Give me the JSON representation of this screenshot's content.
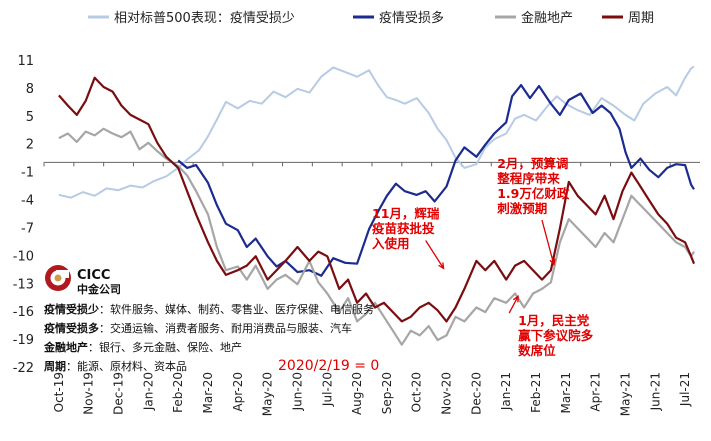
{
  "chart_data": {
    "type": "line",
    "title": "",
    "xlabel": "",
    "ylabel": "",
    "ylim": [
      -22,
      11
    ],
    "yticks": [
      11,
      8,
      5,
      2,
      -1,
      -4,
      -7,
      -10,
      -13,
      -16,
      -19,
      -22
    ],
    "xticks": [
      "Oct-19",
      "Nov-19",
      "Dec-19",
      "Jan-20",
      "Feb-20",
      "Mar-20",
      "Apr-20",
      "May-20",
      "Jun-20",
      "Jul-20",
      "Aug-20",
      "Sep-20",
      "Oct-20",
      "Nov-20",
      "Dec-20",
      "Jan-21",
      "Feb-21",
      "Mar-21",
      "Apr-21",
      "May-21",
      "Jun-21",
      "Jul-21"
    ],
    "grid": false,
    "legend_position": "top",
    "series": [
      {
        "name": "相对标普500表现：疫情受损少",
        "color": "#b7cbe4",
        "points": [
          [
            0,
            -3.5
          ],
          [
            0.4,
            -3.8
          ],
          [
            0.8,
            -3.2
          ],
          [
            1.2,
            -3.6
          ],
          [
            1.6,
            -2.8
          ],
          [
            2,
            -3
          ],
          [
            2.4,
            -2.5
          ],
          [
            2.8,
            -2.7
          ],
          [
            3.2,
            -2
          ],
          [
            3.6,
            -1.5
          ],
          [
            4,
            -0.6
          ],
          [
            4.3,
            0.3
          ],
          [
            4.7,
            1.3
          ],
          [
            5,
            2.8
          ],
          [
            5.3,
            4.6
          ],
          [
            5.6,
            6.5
          ],
          [
            6,
            5.8
          ],
          [
            6.4,
            6.6
          ],
          [
            6.8,
            6.3
          ],
          [
            7.2,
            7.6
          ],
          [
            7.6,
            7
          ],
          [
            8,
            7.9
          ],
          [
            8.4,
            7.5
          ],
          [
            8.8,
            9.2
          ],
          [
            9.2,
            10.2
          ],
          [
            9.6,
            9.7
          ],
          [
            10,
            9.2
          ],
          [
            10.4,
            9.9
          ],
          [
            10.7,
            8.3
          ],
          [
            11,
            7
          ],
          [
            11.3,
            6.7
          ],
          [
            11.6,
            6.3
          ],
          [
            12,
            6.9
          ],
          [
            12.4,
            5.3
          ],
          [
            12.7,
            3.6
          ],
          [
            13,
            2.4
          ],
          [
            13.3,
            0.5
          ],
          [
            13.6,
            -0.6
          ],
          [
            14,
            -0.2
          ],
          [
            14.3,
            1.6
          ],
          [
            14.6,
            2.5
          ],
          [
            15,
            3.1
          ],
          [
            15.3,
            4.7
          ],
          [
            15.6,
            5.1
          ],
          [
            16,
            4.5
          ],
          [
            16.4,
            6.1
          ],
          [
            16.7,
            7.1
          ],
          [
            17,
            6.3
          ],
          [
            17.4,
            5.6
          ],
          [
            17.8,
            5.1
          ],
          [
            18.2,
            6.9
          ],
          [
            18.6,
            6.1
          ],
          [
            19,
            5.1
          ],
          [
            19.3,
            4.5
          ],
          [
            19.6,
            6.3
          ],
          [
            20,
            7.4
          ],
          [
            20.4,
            8.1
          ],
          [
            20.7,
            7.2
          ],
          [
            21,
            9.1
          ],
          [
            21.2,
            10.1
          ],
          [
            21.3,
            10.3
          ]
        ]
      },
      {
        "name": "疫情受损多",
        "color": "#1c2b8f",
        "points": [
          [
            4,
            0.2
          ],
          [
            4.3,
            -0.6
          ],
          [
            4.6,
            -0.3
          ],
          [
            5,
            -2.2
          ],
          [
            5.3,
            -4.6
          ],
          [
            5.6,
            -6.6
          ],
          [
            6,
            -7.3
          ],
          [
            6.3,
            -9.1
          ],
          [
            6.6,
            -8.2
          ],
          [
            7,
            -10.1
          ],
          [
            7.3,
            -11.2
          ],
          [
            7.6,
            -10.6
          ],
          [
            8,
            -11.8
          ],
          [
            8.4,
            -11.6
          ],
          [
            8.8,
            -12.2
          ],
          [
            9.2,
            -10.3
          ],
          [
            9.6,
            -10.8
          ],
          [
            10,
            -10.9
          ],
          [
            10.4,
            -7.2
          ],
          [
            10.7,
            -5.3
          ],
          [
            11,
            -3.6
          ],
          [
            11.3,
            -2.3
          ],
          [
            11.6,
            -3.1
          ],
          [
            12,
            -3.5
          ],
          [
            12.3,
            -3.1
          ],
          [
            12.6,
            -4.2
          ],
          [
            13,
            -2.6
          ],
          [
            13.3,
            0.2
          ],
          [
            13.6,
            1.6
          ],
          [
            14,
            0.6
          ],
          [
            14.3,
            1.9
          ],
          [
            14.6,
            3.1
          ],
          [
            15,
            4.3
          ],
          [
            15.2,
            7.1
          ],
          [
            15.5,
            8.3
          ],
          [
            15.8,
            6.9
          ],
          [
            16.1,
            8.2
          ],
          [
            16.5,
            6.3
          ],
          [
            16.8,
            5.1
          ],
          [
            17.1,
            6.7
          ],
          [
            17.5,
            7.4
          ],
          [
            17.9,
            5.3
          ],
          [
            18.2,
            6.1
          ],
          [
            18.5,
            5.3
          ],
          [
            18.8,
            3.6
          ],
          [
            19,
            1.1
          ],
          [
            19.2,
            -0.6
          ],
          [
            19.5,
            0.4
          ],
          [
            19.8,
            -0.8
          ],
          [
            20.1,
            -1.6
          ],
          [
            20.4,
            -0.6
          ],
          [
            20.7,
            -0.2
          ],
          [
            21,
            -0.3
          ],
          [
            21.2,
            -2.4
          ],
          [
            21.3,
            -2.9
          ]
        ]
      },
      {
        "name": "金融地产",
        "color": "#a6a6a6",
        "points": [
          [
            0,
            2.6
          ],
          [
            0.3,
            3.1
          ],
          [
            0.6,
            2.2
          ],
          [
            0.9,
            3.3
          ],
          [
            1.2,
            2.9
          ],
          [
            1.5,
            3.6
          ],
          [
            1.8,
            3.1
          ],
          [
            2.1,
            2.7
          ],
          [
            2.4,
            3.3
          ],
          [
            2.7,
            1.4
          ],
          [
            3,
            2.1
          ],
          [
            3.3,
            1.2
          ],
          [
            3.6,
            0.4
          ],
          [
            4,
            -0.4
          ],
          [
            4.3,
            -1.4
          ],
          [
            4.6,
            -3.1
          ],
          [
            5,
            -5.6
          ],
          [
            5.3,
            -9.1
          ],
          [
            5.6,
            -11.6
          ],
          [
            6,
            -11.2
          ],
          [
            6.3,
            -12.6
          ],
          [
            6.6,
            -11.1
          ],
          [
            7,
            -13.6
          ],
          [
            7.3,
            -12.6
          ],
          [
            7.6,
            -12.1
          ],
          [
            8,
            -13.1
          ],
          [
            8.4,
            -10.6
          ],
          [
            8.7,
            -12.9
          ],
          [
            9,
            -14.1
          ],
          [
            9.4,
            -16.1
          ],
          [
            9.7,
            -14.6
          ],
          [
            10,
            -17.1
          ],
          [
            10.3,
            -16.3
          ],
          [
            10.6,
            -15.1
          ],
          [
            10.9,
            -16.6
          ],
          [
            11.2,
            -18.1
          ],
          [
            11.5,
            -19.6
          ],
          [
            11.8,
            -18.1
          ],
          [
            12.1,
            -18.6
          ],
          [
            12.4,
            -17.6
          ],
          [
            12.7,
            -19.1
          ],
          [
            13,
            -18.6
          ],
          [
            13.3,
            -16.6
          ],
          [
            13.6,
            -17.1
          ],
          [
            14,
            -15.6
          ],
          [
            14.3,
            -16.1
          ],
          [
            14.6,
            -14.6
          ],
          [
            15,
            -15.1
          ],
          [
            15.3,
            -14.1
          ],
          [
            15.6,
            -15.6
          ],
          [
            15.9,
            -14.1
          ],
          [
            16.2,
            -13.6
          ],
          [
            16.5,
            -12.9
          ],
          [
            16.8,
            -8.6
          ],
          [
            17.1,
            -6.1
          ],
          [
            17.4,
            -7.1
          ],
          [
            17.7,
            -8.1
          ],
          [
            18,
            -9.1
          ],
          [
            18.3,
            -7.6
          ],
          [
            18.6,
            -8.6
          ],
          [
            18.9,
            -6.1
          ],
          [
            19.2,
            -3.6
          ],
          [
            19.5,
            -4.6
          ],
          [
            19.8,
            -5.6
          ],
          [
            20.1,
            -6.6
          ],
          [
            20.4,
            -7.6
          ],
          [
            20.7,
            -8.6
          ],
          [
            21,
            -9.1
          ],
          [
            21.2,
            -10.1
          ],
          [
            21.3,
            -9.6
          ]
        ]
      },
      {
        "name": "周期",
        "color": "#7a0d10",
        "points": [
          [
            0,
            7.2
          ],
          [
            0.3,
            6.1
          ],
          [
            0.6,
            5.1
          ],
          [
            0.9,
            6.6
          ],
          [
            1.2,
            9.1
          ],
          [
            1.5,
            8.1
          ],
          [
            1.8,
            7.6
          ],
          [
            2.1,
            6.1
          ],
          [
            2.4,
            5.1
          ],
          [
            2.7,
            4.6
          ],
          [
            3,
            4.1
          ],
          [
            3.3,
            2.1
          ],
          [
            3.6,
            0.6
          ],
          [
            4,
            -0.6
          ],
          [
            4.3,
            -3.1
          ],
          [
            4.6,
            -5.6
          ],
          [
            5,
            -8.6
          ],
          [
            5.3,
            -10.6
          ],
          [
            5.6,
            -12.1
          ],
          [
            6,
            -11.6
          ],
          [
            6.3,
            -11.1
          ],
          [
            6.6,
            -10.1
          ],
          [
            7,
            -12.6
          ],
          [
            7.3,
            -11.6
          ],
          [
            7.6,
            -10.6
          ],
          [
            8,
            -9.1
          ],
          [
            8.4,
            -10.6
          ],
          [
            8.7,
            -9.6
          ],
          [
            9,
            -10.1
          ],
          [
            9.4,
            -13.6
          ],
          [
            9.7,
            -12.6
          ],
          [
            10,
            -15.1
          ],
          [
            10.3,
            -14.1
          ],
          [
            10.6,
            -15.6
          ],
          [
            10.9,
            -15.1
          ],
          [
            11.2,
            -16.1
          ],
          [
            11.5,
            -17.1
          ],
          [
            11.8,
            -16.6
          ],
          [
            12.1,
            -15.6
          ],
          [
            12.4,
            -15.1
          ],
          [
            12.7,
            -15.9
          ],
          [
            13,
            -17.1
          ],
          [
            13.3,
            -15.6
          ],
          [
            13.6,
            -13.6
          ],
          [
            14,
            -10.6
          ],
          [
            14.3,
            -11.6
          ],
          [
            14.6,
            -10.6
          ],
          [
            15,
            -12.6
          ],
          [
            15.3,
            -11.1
          ],
          [
            15.6,
            -10.6
          ],
          [
            15.9,
            -11.6
          ],
          [
            16.2,
            -12.6
          ],
          [
            16.5,
            -11.6
          ],
          [
            16.8,
            -7.1
          ],
          [
            17.1,
            -2.1
          ],
          [
            17.4,
            -3.6
          ],
          [
            17.7,
            -4.6
          ],
          [
            18,
            -5.6
          ],
          [
            18.3,
            -3.6
          ],
          [
            18.6,
            -6.1
          ],
          [
            18.9,
            -3.1
          ],
          [
            19.2,
            -1.1
          ],
          [
            19.5,
            -2.6
          ],
          [
            19.8,
            -4.1
          ],
          [
            20.1,
            -5.6
          ],
          [
            20.4,
            -6.6
          ],
          [
            20.7,
            -8.1
          ],
          [
            21,
            -8.6
          ],
          [
            21.2,
            -10.1
          ],
          [
            21.3,
            -10.9
          ]
        ]
      }
    ],
    "annotations": [
      {
        "lines": [
          "11月，辉瑞",
          "疫苗获批投",
          "入使用"
        ],
        "x": 10.5,
        "y": -6
      },
      {
        "lines": [
          "2月，预算调",
          "整程序带来",
          "1.9万亿财政",
          "刺激预期"
        ],
        "x": 14.7,
        "y": -0.6
      },
      {
        "lines": [
          "1月，民主党",
          "赢下参议院多",
          "数席位"
        ],
        "x": 15.4,
        "y": -17.5
      }
    ],
    "origin_label": "2020/2/19 = 0"
  },
  "logo": {
    "name": "CICC",
    "subtitle": "中金公司"
  },
  "notes": [
    {
      "label": "疫情受损少",
      "text": "：软件服务、媒体、制药、零售业、医疗保健、电信服务"
    },
    {
      "label": "疫情受损多",
      "text": "：交通运输、消费者服务、耐用消费品与服装、汽车"
    },
    {
      "label": "金融地产",
      "text": "：银行、多元金融、保险、地产"
    },
    {
      "label": "周期",
      "text": "：能源、原材料、资本品"
    }
  ],
  "colors": {
    "accent_red": "#e00000",
    "logo_red": "#b01a1f"
  }
}
